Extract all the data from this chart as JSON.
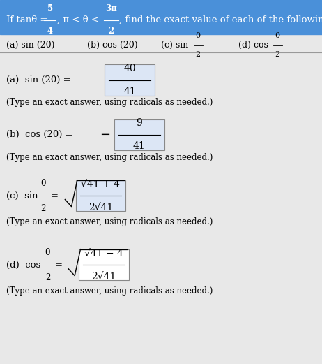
{
  "bg_color": "#e8e8e8",
  "header_bg": "#4a90d9",
  "box_bg": "#dce6f5",
  "box_bg_d": "#ffffff",
  "fig_w": 4.62,
  "fig_h": 5.21,
  "dpi": 100,
  "header_text1": "If tanθ = ",
  "header_frac1_n": "5",
  "header_frac1_d": "4",
  "header_text2": ", π < θ < ",
  "header_frac2_n": "3π",
  "header_frac2_d": "2",
  "header_text3": ", find the exact value of each of the following.",
  "row2_a": "(a) sin (20)",
  "row2_b": "(b) cos (20)",
  "row2_c_pre": "(c) sin ",
  "row2_c_fn": "0",
  "row2_c_fd": "2",
  "row2_d_pre": "(d) cos ",
  "row2_d_fn": "0",
  "row2_d_fd": "2",
  "ans_a_label": "(a)  sin (20) =",
  "ans_a_num": "40",
  "ans_a_den": "41",
  "ans_a_neg": false,
  "ans_a_sqrt": false,
  "ans_b_label": "(b)  cos (20) =",
  "ans_b_num": "9",
  "ans_b_den": "41",
  "ans_b_neg": true,
  "ans_b_sqrt": false,
  "ans_c_label_pre": "(c)  sin ",
  "ans_c_label_fn": "0",
  "ans_c_label_fd": "2",
  "ans_c_num": "√41 + 4",
  "ans_c_den": "2√41",
  "ans_c_neg": false,
  "ans_c_sqrt": true,
  "ans_d_label_pre": "(d)  cos ",
  "ans_d_label_fn": "0",
  "ans_d_label_fd": "2",
  "ans_d_num": "√41 − 4",
  "ans_d_den": "2√41",
  "ans_d_neg": false,
  "ans_d_sqrt": true,
  "note": "(Type an exact answer, using radicals as needed.)"
}
